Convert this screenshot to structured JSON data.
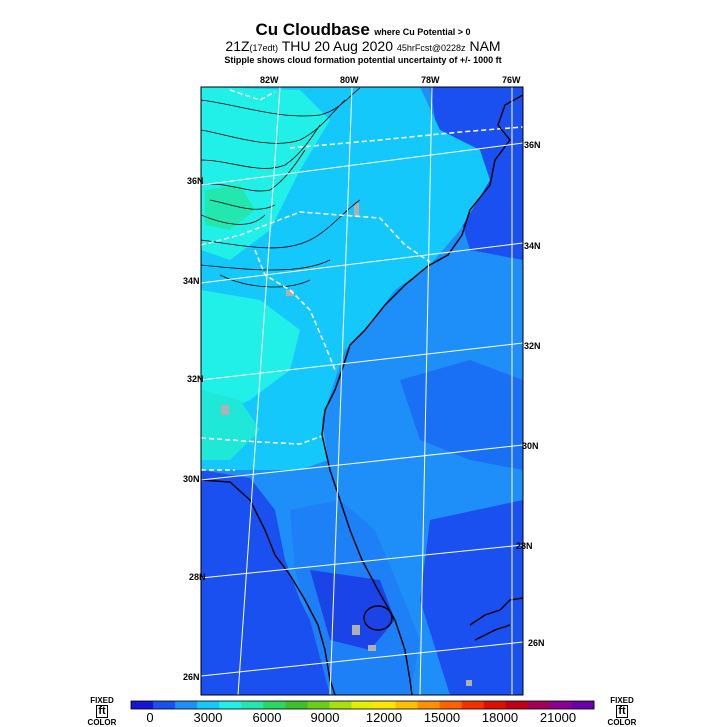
{
  "header": {
    "title": "Cu Cloudbase",
    "title_note": "where Cu Potential > 0",
    "time_main": "21Z",
    "time_local": "(17edt)",
    "date": "THU 20 Aug 2020",
    "forecast": "45hrFcst@0228z",
    "model": "NAM",
    "stipple_note": "Stipple shows cloud formation potential uncertainty of +/- 1000 ft"
  },
  "map": {
    "lon_labels": [
      "82W",
      "80W",
      "78W",
      "76W"
    ],
    "lat_labels_left": [
      "36N",
      "34N",
      "32N",
      "30N",
      "28N",
      "26N"
    ],
    "lat_labels_right": [
      "36N",
      "34N",
      "32N",
      "30N",
      "28N",
      "26N"
    ]
  },
  "colorbar": {
    "left_label": "FIXED",
    "left_label_bottom": "COLOR",
    "right_label": "FIXED",
    "right_label_bottom": "COLOR",
    "unit": "ft",
    "ticks": [
      "0",
      "3000",
      "6000",
      "9000",
      "12000",
      "15000",
      "18000",
      "21000"
    ],
    "colors": [
      "#1515d8",
      "#1a50f0",
      "#1e8ef8",
      "#14c8fc",
      "#20f0e8",
      "#22e8b0",
      "#28d860",
      "#3cc030",
      "#68d018",
      "#a8e010",
      "#e0f000",
      "#ffe600",
      "#ffc000",
      "#ff9000",
      "#ff6000",
      "#f83000",
      "#e01000",
      "#c00018",
      "#a00058",
      "#8a0090",
      "#6a00a8"
    ]
  },
  "palette": {
    "ocean": "#1e8ef8",
    "land_deep": "#1a50f0",
    "cyan": "#14c8fc",
    "teal": "#20f0e8",
    "green": "#22e8b0"
  }
}
